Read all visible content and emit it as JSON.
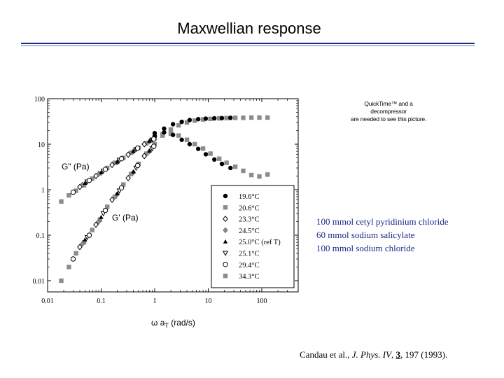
{
  "slide": {
    "title": "Maxwellian response",
    "quicktime_notice": [
      "QuickTime™ and a",
      "decompressor",
      "are needed to see this picture."
    ],
    "composition_lines": [
      "100 mmol cetyl pyridinium chloride",
      "60 mmol sodium salicylate",
      "100 mmol sodium chloride"
    ],
    "citation": {
      "authors": "Candau et al., ",
      "journal": "J. Phys. IV",
      "comma": ", ",
      "volume": "3",
      "rest": ", 197 (1993)."
    }
  },
  "colors": {
    "rule": "#1a2a8c",
    "composition_text": "#1a2a8c",
    "marker_dark": "#000000",
    "marker_gray": "#8c8c8c"
  },
  "chart_data": {
    "type": "scatter",
    "title": "",
    "xscale": "log",
    "yscale": "log",
    "xlim": [
      0.01,
      300
    ],
    "ylim": [
      0.005,
      100
    ],
    "x_ticks": [
      "0.01",
      "0.1",
      "1",
      "10",
      "100"
    ],
    "y_ticks": [
      "100",
      "10",
      "1",
      "0.1",
      "0.01"
    ],
    "xlabel_main": "ω a",
    "xlabel_sub": "T",
    "xlabel_unit": " (rad/s)",
    "curve_labels": {
      "gpp": "G\" (Pa)",
      "gp": "G' (Pa)"
    },
    "legend_position": "lower-right",
    "series": [
      {
        "name": "19.6°C",
        "marker": "circle-filled",
        "gpp": [
          [
            1.0,
            17.5
          ],
          [
            1.5,
            18.2
          ],
          [
            2.2,
            16.0
          ],
          [
            3.2,
            12.5
          ],
          [
            4.5,
            10.0
          ],
          [
            6.5,
            7.9
          ],
          [
            9.0,
            6.0
          ],
          [
            13.0,
            4.6
          ],
          [
            18.0,
            3.7
          ],
          [
            26.0,
            3.0
          ]
        ],
        "gp": [
          [
            1.0,
            15.0
          ],
          [
            1.5,
            22.0
          ],
          [
            2.2,
            27.5
          ],
          [
            3.2,
            31.0
          ],
          [
            4.5,
            34.0
          ],
          [
            6.5,
            35.5
          ],
          [
            9.0,
            36.5
          ],
          [
            13.0,
            37.0
          ],
          [
            18.0,
            37.5
          ],
          [
            26.0,
            38.0
          ]
        ]
      },
      {
        "name": "20.6°C",
        "marker": "square-gray",
        "gpp": [
          [
            0.018,
            0.55
          ],
          [
            0.025,
            0.75
          ],
          [
            0.034,
            0.95
          ],
          [
            0.048,
            1.25
          ],
          [
            0.068,
            1.75
          ],
          [
            0.095,
            2.3
          ],
          [
            0.13,
            3.0
          ],
          [
            0.18,
            3.9
          ],
          [
            0.26,
            5.0
          ],
          [
            0.36,
            6.5
          ],
          [
            0.5,
            8.3
          ],
          [
            0.7,
            10.5
          ],
          [
            1.0,
            13.5
          ],
          [
            1.4,
            16.5
          ],
          [
            2.0,
            17.0
          ],
          [
            2.8,
            15.5
          ],
          [
            4.0,
            12.5
          ],
          [
            5.6,
            10.0
          ],
          [
            8.0,
            8.0
          ],
          [
            11.0,
            6.2
          ],
          [
            16.0,
            4.8
          ],
          [
            22.0,
            3.9
          ],
          [
            32.0,
            3.2
          ],
          [
            45.0,
            2.6
          ],
          [
            64.0,
            2.1
          ],
          [
            90.0,
            1.95
          ],
          [
            128.0,
            2.15
          ]
        ],
        "gp": [
          [
            0.018,
            0.01
          ],
          [
            0.025,
            0.02
          ],
          [
            0.034,
            0.04
          ],
          [
            0.048,
            0.07
          ],
          [
            0.068,
            0.13
          ],
          [
            0.095,
            0.22
          ],
          [
            0.13,
            0.42
          ],
          [
            0.18,
            0.7
          ],
          [
            0.26,
            1.3
          ],
          [
            0.36,
            2.2
          ],
          [
            0.5,
            3.7
          ],
          [
            0.7,
            6.2
          ],
          [
            1.0,
            10.0
          ],
          [
            1.4,
            15.5
          ],
          [
            2.0,
            21.0
          ],
          [
            2.8,
            26.0
          ],
          [
            4.0,
            30.0
          ],
          [
            5.6,
            33.0
          ],
          [
            8.0,
            35.0
          ],
          [
            11.0,
            36.0
          ],
          [
            16.0,
            37.0
          ],
          [
            22.0,
            37.5
          ],
          [
            32.0,
            38.0
          ],
          [
            45.0,
            38.0
          ],
          [
            64.0,
            38.5
          ],
          [
            90.0,
            38.5
          ],
          [
            128.0,
            38.5
          ]
        ]
      },
      {
        "name": "23.3°C",
        "marker": "diamond-open",
        "gpp": [
          [
            0.04,
            1.15
          ],
          [
            0.08,
            2.0
          ],
          [
            0.16,
            3.5
          ],
          [
            0.32,
            5.9
          ],
          [
            0.64,
            10.0
          ]
        ],
        "gp": [
          [
            0.04,
            0.055
          ],
          [
            0.08,
            0.17
          ],
          [
            0.16,
            0.6
          ],
          [
            0.32,
            1.8
          ],
          [
            0.64,
            5.5
          ]
        ]
      },
      {
        "name": "24.5°C",
        "marker": "diamond-filled-gray",
        "gpp": [
          [
            0.045,
            1.3
          ],
          [
            0.09,
            2.2
          ],
          [
            0.2,
            4.0
          ],
          [
            0.4,
            7.0
          ],
          [
            0.8,
            11.5
          ]
        ],
        "gp": [
          [
            0.045,
            0.065
          ],
          [
            0.09,
            0.2
          ],
          [
            0.2,
            0.8
          ],
          [
            0.4,
            2.4
          ],
          [
            0.8,
            7.0
          ]
        ]
      },
      {
        "name": "25.0°C (ref T)",
        "marker": "triangle-up-filled",
        "gpp": [
          [
            0.05,
            1.4
          ],
          [
            0.1,
            2.4
          ],
          [
            0.2,
            4.1
          ],
          [
            0.4,
            7.0
          ],
          [
            0.8,
            11.8
          ]
        ],
        "gp": [
          [
            0.05,
            0.08
          ],
          [
            0.1,
            0.25
          ],
          [
            0.2,
            0.82
          ],
          [
            0.4,
            2.5
          ],
          [
            0.8,
            7.2
          ]
        ]
      },
      {
        "name": "25.1°C",
        "marker": "triangle-down-open",
        "gpp": [
          [
            0.055,
            1.5
          ],
          [
            0.11,
            2.6
          ],
          [
            0.22,
            4.5
          ],
          [
            0.45,
            7.7
          ],
          [
            0.9,
            12.5
          ]
        ],
        "gp": [
          [
            0.055,
            0.09
          ],
          [
            0.11,
            0.3
          ],
          [
            0.22,
            0.95
          ],
          [
            0.45,
            3.0
          ],
          [
            0.9,
            8.0
          ]
        ]
      },
      {
        "name": "29.4°C",
        "marker": "circle-open",
        "gpp": [
          [
            0.03,
            0.88
          ],
          [
            0.06,
            1.6
          ],
          [
            0.12,
            2.8
          ],
          [
            0.24,
            4.8
          ],
          [
            0.48,
            8.2
          ],
          [
            0.96,
            13.0
          ]
        ],
        "gp": [
          [
            0.03,
            0.03
          ],
          [
            0.06,
            0.1
          ],
          [
            0.12,
            0.35
          ],
          [
            0.24,
            1.1
          ],
          [
            0.48,
            3.4
          ],
          [
            0.96,
            9.0
          ]
        ]
      },
      {
        "name": "34.3°C",
        "marker": "square-gray",
        "gpp": [],
        "gp": []
      }
    ]
  }
}
